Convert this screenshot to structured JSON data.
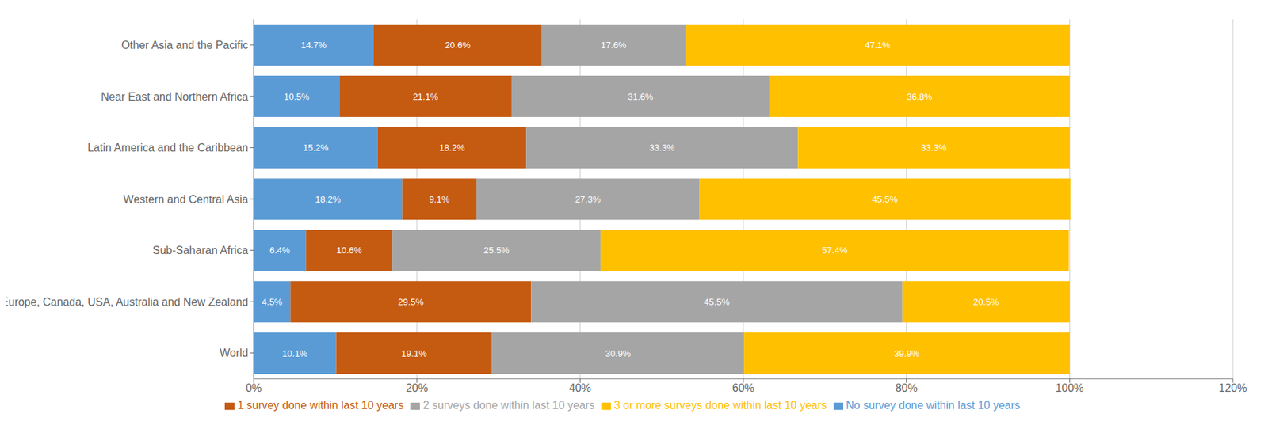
{
  "chart_data": {
    "type": "bar",
    "orientation": "horizontal",
    "stacked": true,
    "data_labels": true,
    "grid": true,
    "legend": "bottom",
    "categories": [
      "Other Asia and the Pacific",
      "Near East and Northern Africa",
      "Latin America and the Caribbean",
      "Western and Central Asia",
      "Sub-Saharan Africa",
      "Europe, Canada, USA, Australia and New Zealand",
      "World"
    ],
    "series": [
      {
        "name": "No survey done within last 10 years",
        "color": "#5B9BD5",
        "values": [
          14.7,
          10.5,
          15.2,
          18.2,
          6.4,
          4.5,
          10.1
        ],
        "value_labels": [
          "14.7%",
          "10.5%",
          "15.2%",
          "18.2%",
          "6.4%",
          "4.5%",
          "10.1%"
        ]
      },
      {
        "name": "1 survey done within last 10 years",
        "color": "#C55A11",
        "values": [
          20.6,
          21.1,
          18.2,
          9.1,
          10.6,
          29.5,
          19.1
        ],
        "value_labels": [
          "20.6%",
          "21.1%",
          "18.2%",
          "9.1%",
          "10.6%",
          "29.5%",
          "19.1%"
        ]
      },
      {
        "name": "2 surveys done within last 10 years",
        "color": "#A5A5A5",
        "values": [
          17.6,
          31.6,
          33.3,
          27.3,
          25.5,
          45.5,
          30.9
        ],
        "value_labels": [
          "17.6%",
          "31.6%",
          "33.3%",
          "27.3%",
          "25.5%",
          "45.5%",
          "30.9%"
        ]
      },
      {
        "name": "3 or more surveys done within last 10 years",
        "color": "#FFC000",
        "values": [
          47.1,
          36.8,
          33.3,
          45.5,
          57.4,
          20.5,
          39.9
        ],
        "value_labels": [
          "47.1%",
          "36.8%",
          "33.3%",
          "45.5%",
          "57.4%",
          "20.5%",
          "39.9%"
        ]
      }
    ],
    "xlim": [
      0,
      120
    ],
    "xticks": [
      {
        "value": 0,
        "label": "0%"
      },
      {
        "value": 20,
        "label": "20%"
      },
      {
        "value": 40,
        "label": "40%"
      },
      {
        "value": 60,
        "label": "60%"
      },
      {
        "value": 80,
        "label": "80%"
      },
      {
        "value": 100,
        "label": "100%"
      },
      {
        "value": 120,
        "label": "120%"
      }
    ]
  }
}
